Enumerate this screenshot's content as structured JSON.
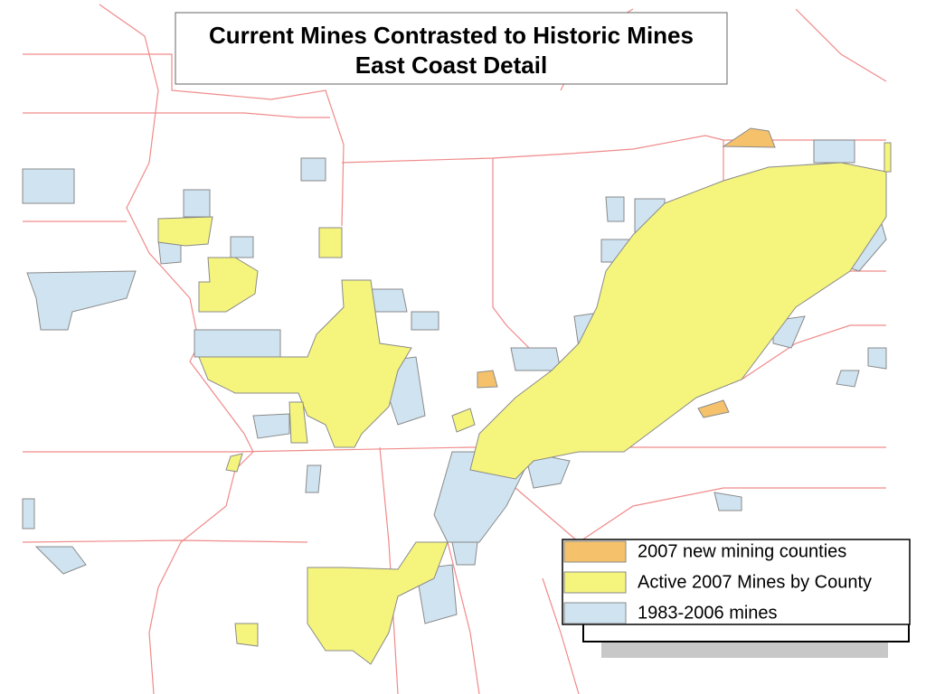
{
  "title": {
    "line1": "Current Mines Contrasted to Historic Mines",
    "line2": "East Coast Detail"
  },
  "legend": {
    "items": [
      {
        "label": "2007 new mining counties",
        "color": "#f5c26b"
      },
      {
        "label": "Active 2007 Mines by County",
        "color": "#f5f57d"
      },
      {
        "label": "1983-2006 mines",
        "color": "#cfe3f0"
      }
    ]
  }
}
